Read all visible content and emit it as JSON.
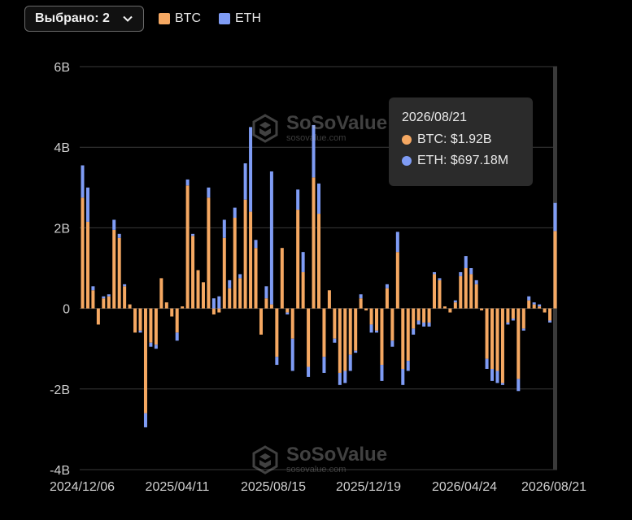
{
  "selector": {
    "label": "Выбрано: 2"
  },
  "legend": [
    {
      "name": "BTC",
      "color": "#f5a862"
    },
    {
      "name": "ETH",
      "color": "#7f9cf5"
    }
  ],
  "tooltip": {
    "date": "2026/08/21",
    "rows": [
      {
        "text": "BTC: $1.92B",
        "color": "#f5a862"
      },
      {
        "text": "ETH: $697.18M",
        "color": "#7f9cf5"
      }
    ]
  },
  "watermark": {
    "name": "SoSoValue",
    "url": "sosovalue.com"
  },
  "chart_data": {
    "type": "bar",
    "stacked": true,
    "grid": true,
    "ylim": [
      -4,
      6
    ],
    "yticks": [
      "6B",
      "4B",
      "2B",
      "0",
      "-2B",
      "-4B"
    ],
    "ytick_values": [
      6,
      4,
      2,
      0,
      -2,
      -4
    ],
    "xtick_labels": [
      "2024/12/06",
      "2025/04/11",
      "2025/08/15",
      "2025/12/19",
      "2026/04/24",
      "2026/08/21"
    ],
    "unit": "B",
    "series": [
      {
        "name": "BTC",
        "color": "#f5a862",
        "values": [
          2.75,
          2.15,
          0.45,
          -0.4,
          0.25,
          0.3,
          1.95,
          1.75,
          0.55,
          0.1,
          -0.6,
          -0.55,
          -2.6,
          -0.85,
          -0.9,
          0.75,
          0.15,
          -0.2,
          -0.6,
          0.05,
          3.05,
          1.8,
          0.95,
          0.65,
          2.75,
          -0.15,
          -0.1,
          1.75,
          0.5,
          2.25,
          0.75,
          2.7,
          2.4,
          1.5,
          -0.65,
          0.25,
          0.1,
          -1.2,
          1.5,
          -0.1,
          -0.75,
          2.45,
          0.9,
          -1.45,
          3.25,
          2.35,
          -1.2,
          0.45,
          -0.75,
          -1.6,
          -1.55,
          -1.15,
          -1.05,
          0.25,
          -0.05,
          -0.4,
          -0.55,
          -1.4,
          0.5,
          -0.8,
          1.4,
          -1.5,
          -1.3,
          -0.5,
          -0.3,
          -0.35,
          -0.35,
          0.85,
          0.7,
          0.05,
          -0.1,
          0.15,
          0.8,
          1.0,
          0.85,
          0.6,
          -0.05,
          -1.25,
          -1.5,
          -1.55,
          -1.85,
          -0.35,
          -0.25,
          -1.75,
          -0.5,
          0.2,
          0.1,
          0.05,
          -0.1,
          -0.3,
          1.92
        ],
        "x_index_note": ""
      },
      {
        "name": "ETH",
        "color": "#7f9cf5",
        "values": [
          0.8,
          0.85,
          0.1,
          0.0,
          0.05,
          0.05,
          0.25,
          0.1,
          0.05,
          0.0,
          0.0,
          -0.05,
          -0.35,
          -0.1,
          -0.1,
          0.0,
          0.0,
          0.0,
          -0.2,
          0.0,
          0.15,
          0.05,
          0.0,
          0.0,
          0.25,
          0.25,
          0.3,
          0.45,
          0.2,
          0.25,
          0.1,
          0.9,
          2.1,
          0.2,
          0.0,
          0.3,
          3.3,
          -0.2,
          0.0,
          -0.05,
          -0.8,
          0.5,
          0.5,
          -0.25,
          1.3,
          0.75,
          -0.4,
          0.0,
          -0.1,
          -0.3,
          -0.3,
          -0.4,
          -0.05,
          0.1,
          0.0,
          -0.2,
          -0.05,
          -0.4,
          0.1,
          -0.15,
          0.5,
          -0.4,
          -0.25,
          -0.15,
          -0.1,
          -0.1,
          -0.1,
          0.05,
          0.05,
          0.0,
          0.0,
          0.05,
          0.1,
          0.3,
          0.15,
          0.1,
          0.0,
          -0.25,
          -0.3,
          -0.3,
          -0.05,
          -0.05,
          -0.05,
          -0.3,
          -0.05,
          0.1,
          0.05,
          0.05,
          0.0,
          -0.05,
          0.697
        ]
      }
    ]
  }
}
